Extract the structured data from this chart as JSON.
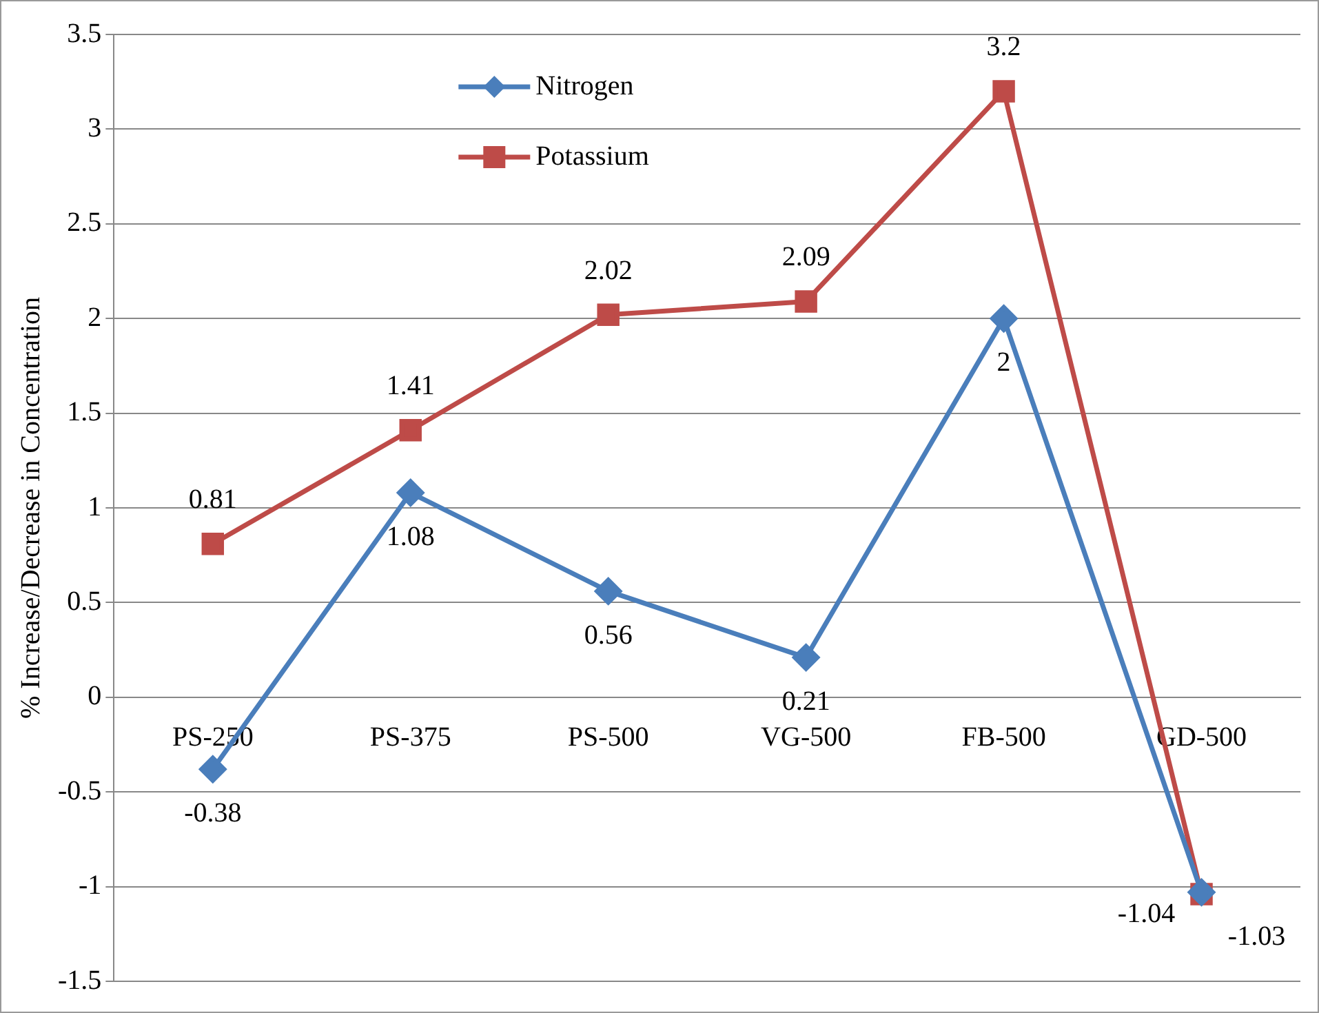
{
  "chart_data": {
    "type": "line",
    "ylabel": "% Increase/Decrease in Concentration",
    "categories": [
      "PS-250",
      "PS-375",
      "PS-500",
      "VG-500",
      "FB-500",
      "GD-500"
    ],
    "series": [
      {
        "name": "Nitrogen",
        "color": "#4a7ebb",
        "marker": "diamond",
        "values": [
          -0.38,
          1.08,
          0.56,
          0.21,
          2,
          -1.03
        ]
      },
      {
        "name": "Potassium",
        "color": "#be4b48",
        "marker": "square",
        "values": [
          0.81,
          1.41,
          2.02,
          2.09,
          3.2,
          -1.04
        ]
      }
    ],
    "ylim": [
      -1.5,
      3.5
    ],
    "yticks": [
      -1.5,
      -1,
      -0.5,
      0,
      0.5,
      1,
      1.5,
      2,
      2.5,
      3,
      3.5
    ],
    "grid": "y",
    "legend": "top",
    "data_labels": true,
    "line_style": "solid"
  }
}
